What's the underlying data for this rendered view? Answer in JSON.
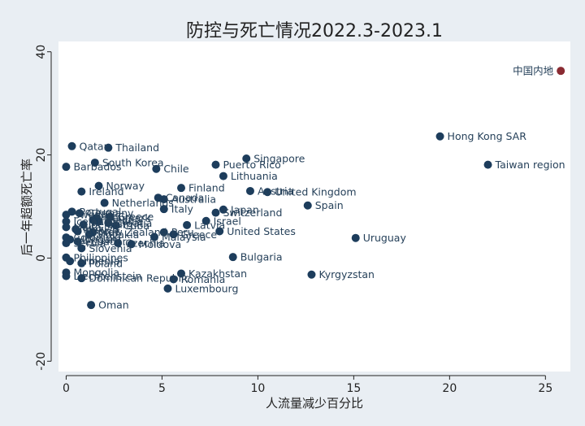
{
  "chart_data": {
    "type": "scatter",
    "title": "防控与死亡情况2022.3-2023.1",
    "xlabel": "人流量减少百分比",
    "ylabel": "后一年超额死亡率",
    "xlim": [
      -0.4,
      26.3
    ],
    "ylim": [
      -22,
      42
    ],
    "xticks": [
      0,
      5,
      10,
      15,
      20,
      25
    ],
    "yticks": [
      -20,
      0,
      20,
      40
    ],
    "grid": false,
    "colors": {
      "default": "#1d3d5c",
      "highlight": "#8a2b32",
      "label": "#26415a"
    },
    "points": [
      {
        "label": "中国内地",
        "x": 25.8,
        "y": 36.3,
        "highlight": true,
        "pos": "left"
      },
      {
        "label": "Hong Kong SAR",
        "x": 19.5,
        "y": 23.6
      },
      {
        "label": "Taiwan region",
        "x": 22.0,
        "y": 18.1
      },
      {
        "label": "Qatar",
        "x": 0.3,
        "y": 21.7
      },
      {
        "label": "Thailand",
        "x": 2.2,
        "y": 21.4
      },
      {
        "label": "Barbados",
        "x": 0.0,
        "y": 17.7
      },
      {
        "label": "South Korea",
        "x": 1.5,
        "y": 18.5
      },
      {
        "label": "Chile",
        "x": 4.7,
        "y": 17.3
      },
      {
        "label": "Puerto Rico",
        "x": 7.8,
        "y": 18.1
      },
      {
        "label": "Singapore",
        "x": 9.4,
        "y": 19.3
      },
      {
        "label": "Lithuania",
        "x": 8.2,
        "y": 15.9
      },
      {
        "label": "Norway",
        "x": 1.7,
        "y": 14.0
      },
      {
        "label": "Ireland",
        "x": 0.8,
        "y": 12.9
      },
      {
        "label": "Finland",
        "x": 6.0,
        "y": 13.6
      },
      {
        "label": "Austria",
        "x": 9.6,
        "y": 13.0
      },
      {
        "label": "United Kingdom",
        "x": 10.5,
        "y": 12.8
      },
      {
        "label": "Netherlands",
        "x": 2.0,
        "y": 10.7
      },
      {
        "label": "Canada",
        "x": 4.8,
        "y": 11.7
      },
      {
        "label": "Australia",
        "x": 5.1,
        "y": 11.4
      },
      {
        "label": "Italy",
        "x": 5.1,
        "y": 9.5
      },
      {
        "label": "Japan",
        "x": 8.2,
        "y": 9.4
      },
      {
        "label": "Switzerland",
        "x": 7.8,
        "y": 8.8
      },
      {
        "label": "Spain",
        "x": 12.6,
        "y": 10.2
      },
      {
        "label": "Portugal",
        "x": 0.3,
        "y": 9.0
      },
      {
        "label": "Germany",
        "x": 0.7,
        "y": 8.7
      },
      {
        "label": "Sweden",
        "x": 0.0,
        "y": 8.4
      },
      {
        "label": "Greece",
        "x": 2.3,
        "y": 8.0
      },
      {
        "label": "Denmark",
        "x": 1.6,
        "y": 7.8
      },
      {
        "label": "France",
        "x": 1.4,
        "y": 7.4
      },
      {
        "label": "Estonia",
        "x": 1.7,
        "y": 7.1
      },
      {
        "label": "Iceland",
        "x": 0.0,
        "y": 7.1
      },
      {
        "label": "Croatia",
        "x": 2.2,
        "y": 6.8
      },
      {
        "label": "Belgium",
        "x": 0.9,
        "y": 6.5
      },
      {
        "label": "Cuba",
        "x": 2.6,
        "y": 6.3
      },
      {
        "label": "Malta",
        "x": 0.0,
        "y": 6.0
      },
      {
        "label": "Latvia",
        "x": 6.3,
        "y": 6.4
      },
      {
        "label": "Israel",
        "x": 7.3,
        "y": 7.2
      },
      {
        "label": "Mexico",
        "x": 0.5,
        "y": 5.6
      },
      {
        "label": "Cyprus",
        "x": 0.6,
        "y": 5.2
      },
      {
        "label": "New Zealand",
        "x": 1.4,
        "y": 5.0
      },
      {
        "label": "Slovakia",
        "x": 1.2,
        "y": 4.6
      },
      {
        "label": "Peru",
        "x": 5.1,
        "y": 5.0
      },
      {
        "label": "Greece",
        "x": 5.6,
        "y": 4.6
      },
      {
        "label": "United States",
        "x": 8.0,
        "y": 5.2
      },
      {
        "label": "Malaysia",
        "x": 4.6,
        "y": 4.1
      },
      {
        "label": "Colombia",
        "x": 0.0,
        "y": 4.0
      },
      {
        "label": "Hungary",
        "x": 0.2,
        "y": 3.6
      },
      {
        "label": "Ecuador",
        "x": 0.6,
        "y": 3.2
      },
      {
        "label": "Serbia",
        "x": 0.0,
        "y": 2.9
      },
      {
        "label": "Czechia",
        "x": 2.7,
        "y": 2.9
      },
      {
        "label": "Moldova",
        "x": 3.4,
        "y": 2.7
      },
      {
        "label": "Slovenia",
        "x": 0.8,
        "y": 1.9
      },
      {
        "label": "Uruguay",
        "x": 15.1,
        "y": 3.9
      },
      {
        "label": "Bulgaria",
        "x": 8.7,
        "y": 0.2
      },
      {
        "label": "Kyrgyzstan",
        "x": 12.8,
        "y": -3.2
      },
      {
        "label": "Kazakhstan",
        "x": 6.0,
        "y": -3.0
      },
      {
        "label": "Romania",
        "x": 5.6,
        "y": -4.1
      },
      {
        "label": "Luxembourg",
        "x": 5.3,
        "y": -5.9
      },
      {
        "label": "Philippines",
        "x": 0.0,
        "y": 0.1
      },
      {
        "label": "Armenia",
        "x": 0.2,
        "y": -0.6
      },
      {
        "label": "Poland",
        "x": 0.8,
        "y": -1.0
      },
      {
        "label": "Mongolia",
        "x": 0.0,
        "y": -2.8
      },
      {
        "label": "Liechtenstein",
        "x": 0.0,
        "y": -3.5
      },
      {
        "label": "Dominican Republic",
        "x": 0.8,
        "y": -3.9
      },
      {
        "label": "Oman",
        "x": 1.3,
        "y": -9.1
      }
    ]
  }
}
